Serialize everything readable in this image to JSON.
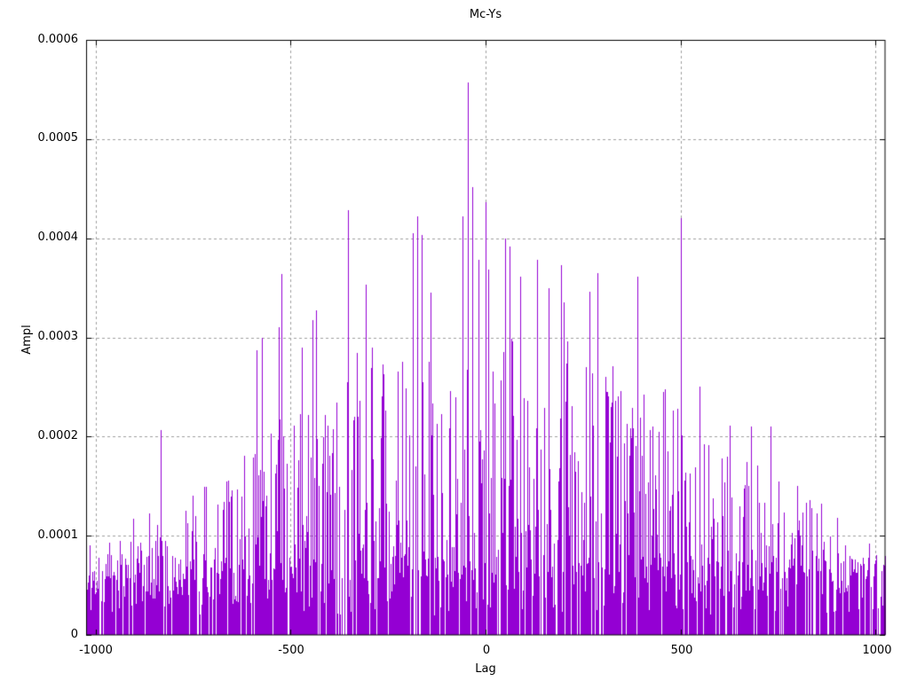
{
  "chart_data": {
    "type": "stem",
    "title": "Mc-Ys",
    "xlabel": "Lag",
    "ylabel": "Ampl",
    "xlim": [
      -1024,
      1024
    ],
    "ylim": [
      0,
      0.0006
    ],
    "x_ticks": [
      {
        "value": -1000,
        "label": "-1000"
      },
      {
        "value": -500,
        "label": "-500"
      },
      {
        "value": 0,
        "label": "0"
      },
      {
        "value": 500,
        "label": "500"
      },
      {
        "value": 1000,
        "label": "1000"
      }
    ],
    "y_ticks": [
      {
        "value": 0,
        "label": "0"
      },
      {
        "value": 0.0001,
        "label": "0.0001"
      },
      {
        "value": 0.0002,
        "label": "0.0002"
      },
      {
        "value": 0.0003,
        "label": "0.0003"
      },
      {
        "value": 0.0004,
        "label": "0.0004"
      },
      {
        "value": 0.0005,
        "label": "0.0005"
      },
      {
        "value": 0.0006,
        "label": "0.0006"
      }
    ],
    "grid": {
      "shown": true,
      "style": "dashed",
      "color": "#9f9f9f",
      "dash": [
        3,
        3
      ]
    },
    "series_color": "#9400d3",
    "border_color": "#000000",
    "legend": "none",
    "notable_peaks": [
      [
        -832,
        0.000207
      ],
      [
        -586,
        0.000287
      ],
      [
        -573,
        0.0003
      ],
      [
        -530,
        0.00031
      ],
      [
        -523,
        0.000364
      ],
      [
        -472,
        0.00029
      ],
      [
        -443,
        0.000317
      ],
      [
        -434,
        0.000327
      ],
      [
        -352,
        0.000428
      ],
      [
        -330,
        0.000284
      ],
      [
        -307,
        0.000353
      ],
      [
        -291,
        0.00029
      ],
      [
        -186,
        0.000405
      ],
      [
        -175,
        0.000422
      ],
      [
        -164,
        0.000403
      ],
      [
        -140,
        0.000345
      ],
      [
        -59,
        0.000422
      ],
      [
        -45,
        0.000557
      ],
      [
        -34,
        0.000452
      ],
      [
        -18,
        0.000378
      ],
      [
        0,
        0.000436
      ],
      [
        7,
        0.000368
      ],
      [
        50,
        0.0004
      ],
      [
        61,
        0.000392
      ],
      [
        89,
        0.000361
      ],
      [
        132,
        0.000378
      ],
      [
        161,
        0.00035
      ],
      [
        193,
        0.000373
      ],
      [
        200,
        0.000335
      ],
      [
        266,
        0.000346
      ],
      [
        287,
        0.000365
      ],
      [
        389,
        0.000361
      ],
      [
        500,
        0.00042
      ],
      [
        548,
        0.00025
      ],
      [
        625,
        0.000211
      ],
      [
        680,
        0.00021
      ],
      [
        730,
        0.00021
      ]
    ],
    "envelope": [
      [
        -1024,
        0.0001
      ],
      [
        -900,
        0.00012
      ],
      [
        -800,
        0.00014
      ],
      [
        -700,
        0.00016
      ],
      [
        -600,
        0.0002
      ],
      [
        -500,
        0.00024
      ],
      [
        -400,
        0.00025
      ],
      [
        -300,
        0.00027
      ],
      [
        -200,
        0.00028
      ],
      [
        -100,
        0.0003
      ],
      [
        0,
        0.00032
      ],
      [
        100,
        0.0003
      ],
      [
        200,
        0.0003
      ],
      [
        300,
        0.00028
      ],
      [
        400,
        0.00026
      ],
      [
        500,
        0.00026
      ],
      [
        600,
        0.00022
      ],
      [
        700,
        0.00018
      ],
      [
        800,
        0.00015
      ],
      [
        900,
        0.00013
      ],
      [
        1024,
        0.00011
      ]
    ],
    "noise": {
      "seed": 1337,
      "lag_step": 2,
      "gap_probability": 0.15,
      "floor_min": 2e-05,
      "floor_max": 8e-05,
      "spike_power": 1.6
    }
  }
}
